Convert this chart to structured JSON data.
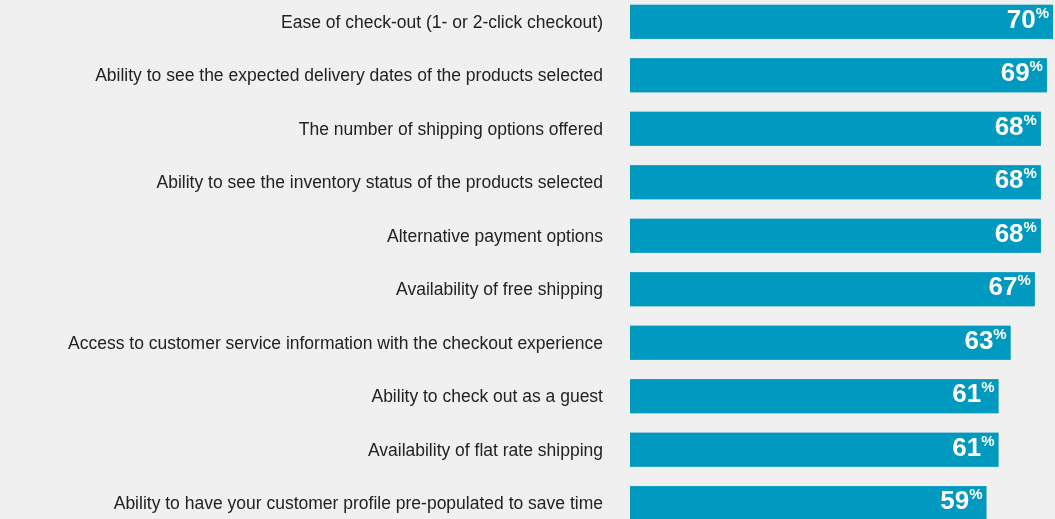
{
  "chart_data": {
    "type": "bar",
    "orientation": "horizontal",
    "categories": [
      "Ease of check-out (1- or 2-click checkout)",
      "Ability to see the expected delivery dates of the products selected",
      "The number of shipping options offered",
      "Ability to see the inventory status of the products selected",
      "Alternative payment options",
      "Availability of free shipping",
      "Access to customer service information with the checkout experience",
      "Ability to check out as a guest",
      "Availability of flat rate shipping",
      "Ability to have your customer profile pre-populated to save time"
    ],
    "values": [
      70,
      69,
      68,
      68,
      68,
      67,
      63,
      61,
      61,
      59
    ],
    "value_labels": [
      "70$^{%}$",
      "69$^{%}$",
      "68$^{%}$",
      "68$^{%}$",
      "68$^{%}$",
      "67$^{%}$",
      "63$^{%}$",
      "61$^{%}$",
      "61$^{%}$",
      "59$^{%}$"
    ],
    "color": "#0099bf"
  }
}
